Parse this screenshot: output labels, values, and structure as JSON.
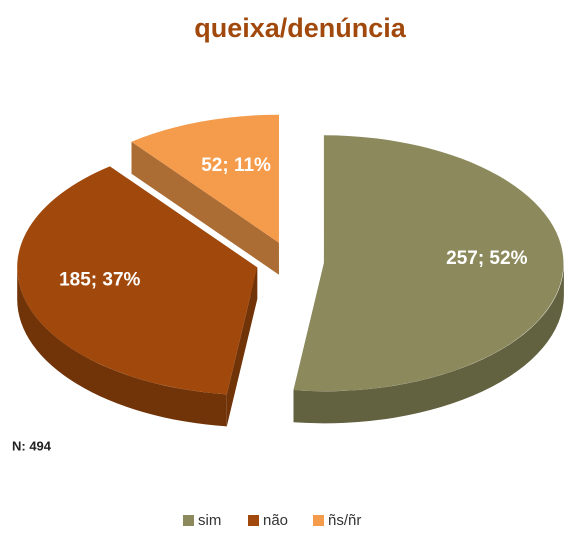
{
  "chart_data": {
    "type": "pie",
    "title": "queixa/denúncia",
    "categories": [
      "sim",
      "não",
      "ñs/ñr"
    ],
    "values": [
      257,
      185,
      52
    ],
    "value_labels": [
      "257; 52%",
      "185; 37%",
      "52; 11%"
    ],
    "colors": [
      "#8c8a5c",
      "#a1490c",
      "#f59b4c"
    ],
    "annotation": "N: 494",
    "legend": "bottom"
  }
}
